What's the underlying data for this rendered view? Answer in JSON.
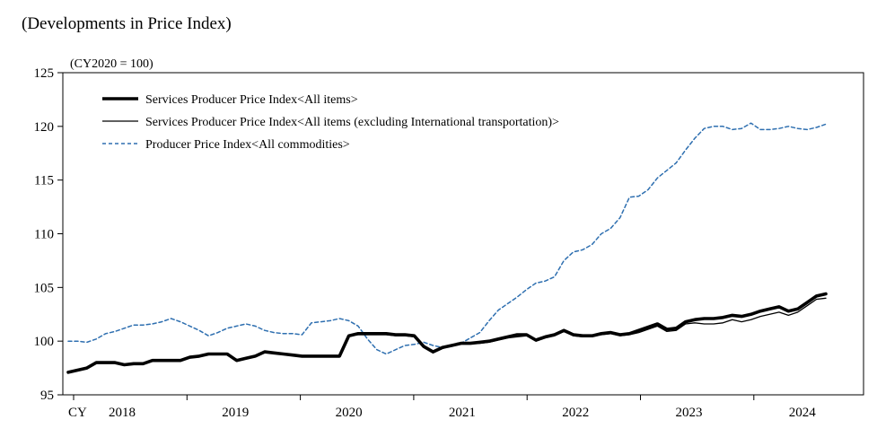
{
  "page_title": "(Developments in Price Index)",
  "chart_data": {
    "type": "line",
    "unit_label": "(CY2020 = 100)",
    "ylim": [
      95,
      125
    ],
    "yticks": [
      95,
      100,
      105,
      110,
      115,
      120,
      125
    ],
    "xlim": [
      0,
      81
    ],
    "x_start_label": "CY",
    "year_labels": [
      "2018",
      "2019",
      "2020",
      "2021",
      "2022",
      "2023",
      "2024"
    ],
    "grid": false,
    "legend_position": "top-left",
    "series": [
      {
        "name": "Services Producer Price Index<All items>",
        "color": "#000000",
        "style": "thick",
        "values": [
          97.1,
          97.3,
          97.5,
          98.0,
          98.0,
          98.0,
          97.8,
          97.9,
          97.9,
          98.2,
          98.2,
          98.2,
          98.2,
          98.5,
          98.6,
          98.8,
          98.8,
          98.8,
          98.2,
          98.4,
          98.6,
          99.0,
          98.9,
          98.8,
          98.7,
          98.6,
          98.6,
          98.6,
          98.6,
          98.6,
          100.5,
          100.7,
          100.7,
          100.7,
          100.7,
          100.6,
          100.6,
          100.5,
          99.5,
          99.0,
          99.4,
          99.6,
          99.8,
          99.8,
          99.9,
          100.0,
          100.2,
          100.4,
          100.6,
          100.6,
          100.1,
          100.4,
          100.6,
          101.0,
          100.6,
          100.5,
          100.5,
          100.7,
          100.8,
          100.6,
          100.7,
          101.0,
          101.3,
          101.6,
          101.1,
          101.2,
          101.8,
          102.0,
          102.1,
          102.1,
          102.2,
          102.4,
          102.3,
          102.5,
          102.8,
          103.0,
          103.2,
          102.8,
          103.0,
          103.6,
          104.2,
          104.4
        ]
      },
      {
        "name": "Services Producer Price Index<All items (excluding International transportation)>",
        "color": "#000000",
        "style": "thin",
        "values": [
          97.1,
          97.3,
          97.5,
          98.0,
          98.0,
          98.0,
          97.8,
          97.9,
          97.9,
          98.2,
          98.2,
          98.2,
          98.2,
          98.5,
          98.6,
          98.8,
          98.8,
          98.8,
          98.2,
          98.4,
          98.6,
          99.0,
          98.9,
          98.8,
          98.7,
          98.6,
          98.6,
          98.6,
          98.6,
          98.6,
          100.5,
          100.6,
          100.6,
          100.6,
          100.6,
          100.5,
          100.5,
          100.4,
          99.4,
          98.9,
          99.3,
          99.6,
          99.8,
          99.8,
          99.8,
          99.9,
          100.1,
          100.3,
          100.4,
          100.5,
          100.0,
          100.3,
          100.5,
          100.9,
          100.5,
          100.4,
          100.4,
          100.6,
          100.7,
          100.5,
          100.6,
          100.8,
          101.1,
          101.4,
          100.9,
          101.0,
          101.6,
          101.7,
          101.6,
          101.6,
          101.7,
          102.0,
          101.8,
          102.0,
          102.3,
          102.5,
          102.7,
          102.4,
          102.7,
          103.3,
          103.9,
          104.0
        ]
      },
      {
        "name": "Producer Price Index<All commodities>",
        "color": "#2e6fb0",
        "style": "dashed",
        "values": [
          100.0,
          100.0,
          99.9,
          100.2,
          100.7,
          100.9,
          101.2,
          101.5,
          101.5,
          101.6,
          101.8,
          102.1,
          101.8,
          101.4,
          101.0,
          100.5,
          100.8,
          101.2,
          101.4,
          101.6,
          101.4,
          101.0,
          100.8,
          100.7,
          100.7,
          100.6,
          101.7,
          101.8,
          101.9,
          102.1,
          101.9,
          101.4,
          100.2,
          99.2,
          98.8,
          99.2,
          99.6,
          99.7,
          99.9,
          99.6,
          99.4,
          99.5,
          99.8,
          100.3,
          100.8,
          101.9,
          102.9,
          103.5,
          104.1,
          104.8,
          105.4,
          105.6,
          106.0,
          107.5,
          108.3,
          108.5,
          109.0,
          110.0,
          110.5,
          111.5,
          113.4,
          113.5,
          114.1,
          115.2,
          115.9,
          116.6,
          117.8,
          118.9,
          119.8,
          120.0,
          120.0,
          119.7,
          119.8,
          120.3,
          119.7,
          119.7,
          119.8,
          120.0,
          119.8,
          119.7,
          119.9,
          120.2
        ]
      }
    ]
  }
}
